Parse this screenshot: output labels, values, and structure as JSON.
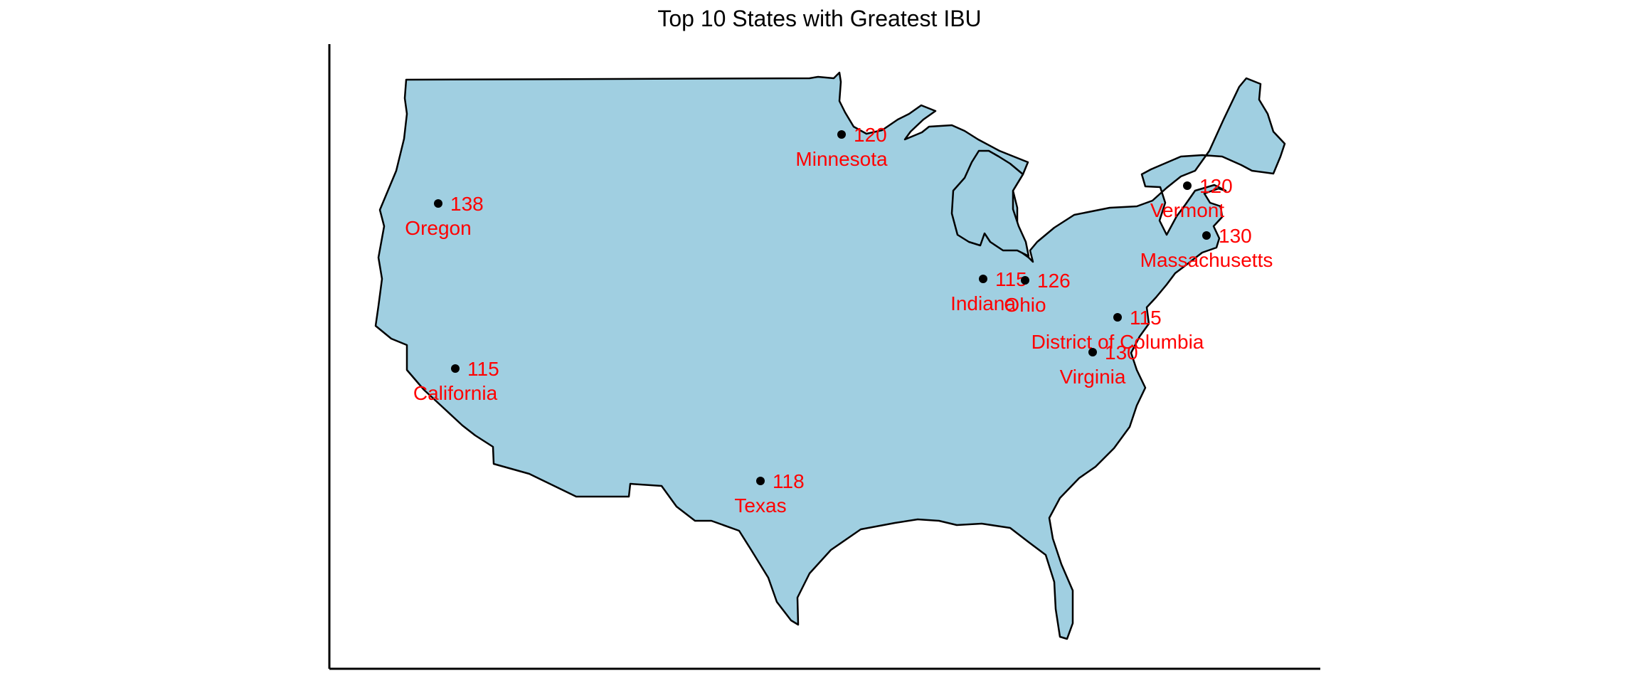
{
  "title": "Top 10 States with Greatest IBU",
  "colors": {
    "land": "#a0cfe1",
    "outline": "#000000",
    "label": "#ff0000",
    "marker": "#000000"
  },
  "chart_data": {
    "type": "map",
    "title": "Top 10 States with Greatest IBU",
    "region": "Contiguous United States",
    "points": [
      {
        "state": "Oregon",
        "ibu": 138
      },
      {
        "state": "California",
        "ibu": 115
      },
      {
        "state": "Minnesota",
        "ibu": 120
      },
      {
        "state": "Texas",
        "ibu": 118
      },
      {
        "state": "Indiana",
        "ibu": 115
      },
      {
        "state": "Ohio",
        "ibu": 126
      },
      {
        "state": "Vermont",
        "ibu": 120
      },
      {
        "state": "Massachusetts",
        "ibu": 130
      },
      {
        "state": "District of Columbia",
        "ibu": 115
      },
      {
        "state": "Virginia",
        "ibu": 130
      }
    ]
  }
}
